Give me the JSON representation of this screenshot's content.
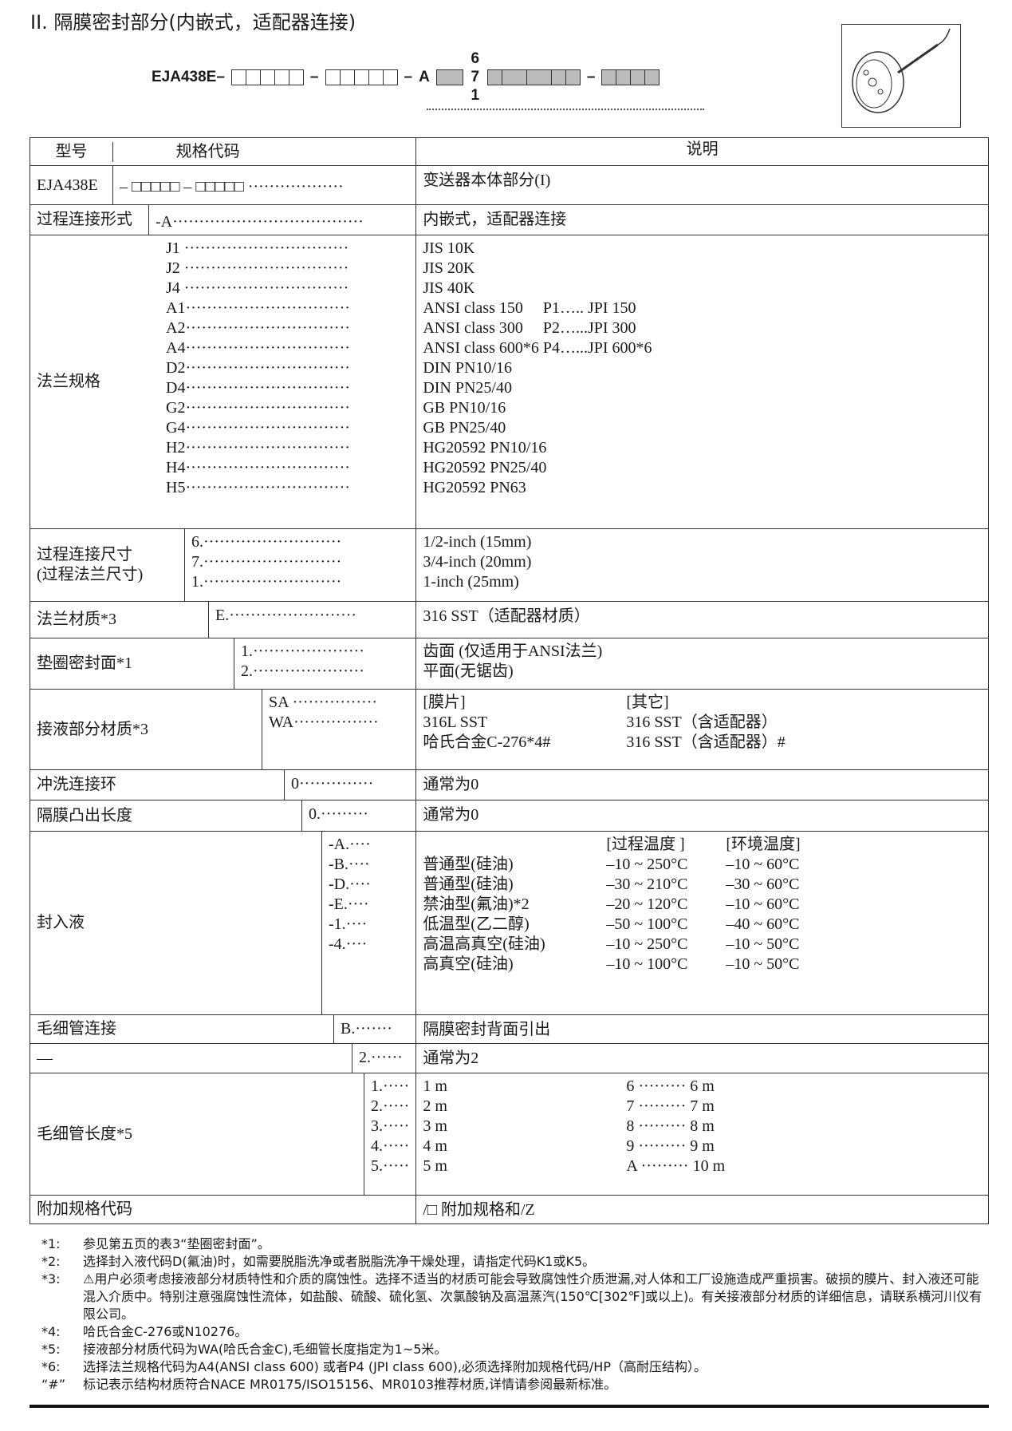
{
  "title": "II. 隔膜密封部分(内嵌式，适配器连接)",
  "model_code": {
    "prefix": "EJA438E",
    "dash": "–",
    "letter": "A",
    "stack": [
      "6",
      "7",
      "1"
    ]
  },
  "headers": {
    "model": "型号",
    "code": "规格代码",
    "desc": "说明"
  },
  "rows": [
    {
      "label": "EJA438E",
      "code": "– □□□□□ – □□□□□ ··················",
      "desc": [
        "变送器本体部分(I)"
      ]
    },
    {
      "label": "过程连接形式",
      "code": "-A····································",
      "desc": [
        "内嵌式，适配器连接"
      ]
    },
    {
      "label": "法兰规格",
      "code": [
        "J1 ·······························",
        "J2 ·······························",
        "J4 ·······························",
        "A1·······························",
        "A2·······························",
        "A4·······························",
        "D2·······························",
        "D4·······························",
        "G2·······························",
        "G4·······························",
        "H2·······························",
        "H4·······························",
        "H5·······························"
      ],
      "desc": [
        "JIS 10K",
        "JIS 20K",
        "JIS 40K",
        "ANSI class 150　  P1….. JPI  150",
        "ANSI class 300　  P2…...JPI  300",
        "ANSI class 600*6  P4…...JPI  600*6",
        "DIN  PN10/16",
        "DIN  PN25/40",
        "GB   PN10/16",
        "GB   PN25/40",
        "HG20592  PN10/16",
        "HG20592  PN25/40",
        "HG20592  PN63"
      ]
    },
    {
      "label": [
        "过程连接尺寸",
        "(过程法兰尺寸)"
      ],
      "code": [
        "6.··························",
        "7.··························",
        "1.··························"
      ],
      "desc": [
        "1/2-inch (15mm)",
        "3/4-inch (20mm)",
        "1-inch (25mm)"
      ]
    },
    {
      "label": "法兰材质*3",
      "code": [
        "E.························"
      ],
      "desc": [
        "316 SST（适配器材质）"
      ]
    },
    {
      "label": "垫圈密封面*1",
      "code": [
        "1.·····················",
        "2.·····················"
      ],
      "desc": [
        "齿面 (仅适用于ANSI法兰)",
        "平面(无锯齿)"
      ]
    },
    {
      "label": "接液部分材质*3",
      "code": [
        "",
        "SA ················",
        "WA················"
      ],
      "desc": [
        [
          "[膜片]",
          "[其它]"
        ],
        [
          "316L SST",
          "316 SST（含适配器）"
        ],
        [
          "哈氏合金C-276*4#",
          "316 SST（含适配器）#"
        ]
      ]
    },
    {
      "label": "冲洗连接环",
      "code": [
        "0··············"
      ],
      "desc": [
        "通常为0"
      ]
    },
    {
      "label": "隔膜凸出长度",
      "code": [
        "0.·········"
      ],
      "desc": [
        "通常为0"
      ]
    },
    {
      "label": "封入液",
      "code": [
        "",
        "-A.····",
        "-B.····",
        "-D.····",
        "-E.····",
        "-1.····",
        "-4.····"
      ],
      "desc": [
        [
          "",
          "[过程温度 ]",
          "[环境温度]"
        ],
        [
          "普通型(硅油)",
          "–10 ~ 250°C",
          "–10 ~ 60°C"
        ],
        [
          "普通型(硅油)",
          "–30 ~ 210°C",
          "–30 ~ 60°C"
        ],
        [
          "禁油型(氟油)*2",
          "–20 ~ 120°C",
          "–10 ~ 60°C"
        ],
        [
          "低温型(乙二醇)",
          "–50 ~ 100°C",
          "–40 ~ 60°C"
        ],
        [
          "高温高真空(硅油)",
          "–10 ~ 250°C",
          "–10 ~ 50°C"
        ],
        [
          "高真空(硅油)",
          "–10 ~ 100°C",
          "–10 ~ 50°C"
        ]
      ]
    },
    {
      "label": "毛细管连接",
      "code": [
        "B.·······"
      ],
      "desc": [
        "隔膜密封背面引出"
      ]
    },
    {
      "label": "—",
      "code": [
        "2.······"
      ],
      "desc": [
        "通常为2"
      ]
    },
    {
      "label": "毛细管长度*5",
      "code": [
        "1.·····",
        "2.·····",
        "3.·····",
        "4.·····",
        "5.·····"
      ],
      "desc": [
        [
          "1 m",
          "6 ········· 6 m"
        ],
        [
          "2 m",
          "7 ········· 7 m"
        ],
        [
          "3 m",
          "8 ········· 8 m"
        ],
        [
          "4 m",
          "9 ········· 9 m"
        ],
        [
          "5 m",
          "A ········· 10 m"
        ]
      ]
    },
    {
      "label": "附加规格代码",
      "code": [
        ""
      ],
      "desc": [
        "/□ 附加规格和/Z"
      ]
    }
  ],
  "notes": [
    {
      "k": "*1:",
      "t": "参见第五页的表3“垫圈密封面”。"
    },
    {
      "k": "*2:",
      "t": "选择封入液代码D(氟油)时，如需要脱脂洗净或者脱脂洗净干燥处理，请指定代码K1或K5。"
    },
    {
      "k": "*3:",
      "t": "⚠用户必须考虑接液部分材质特性和介质的腐蚀性。选择不适当的材质可能会导致腐蚀性介质泄漏,对人体和工厂设施造成严重损害。破损的膜片、封入液还可能混入介质中。特别注意强腐蚀性流体，如盐酸、硫酸、硫化氢、次氯酸钠及高温蒸汽(150℃[302℉]或以上)。有关接液部分材质的详细信息，请联系横河川仪有限公司。"
    },
    {
      "k": "*4:",
      "t": "哈氏合金C-276或N10276。"
    },
    {
      "k": "*5:",
      "t": "接液部分材质代码为WA(哈氏合金C),毛细管长度指定为1~5米。"
    },
    {
      "k": "*6:",
      "t": "选择法兰规格代码为A4(ANSI class 600) 或者P4 (JPI class 600),必须选择附加规格代码/HP（高耐压结构）。"
    },
    {
      "k": "“#”",
      "t": "标记表示结构材质符合NACE MR0175/ISO15156、MR0103推荐材质,详情请参阅最新标准。"
    }
  ]
}
